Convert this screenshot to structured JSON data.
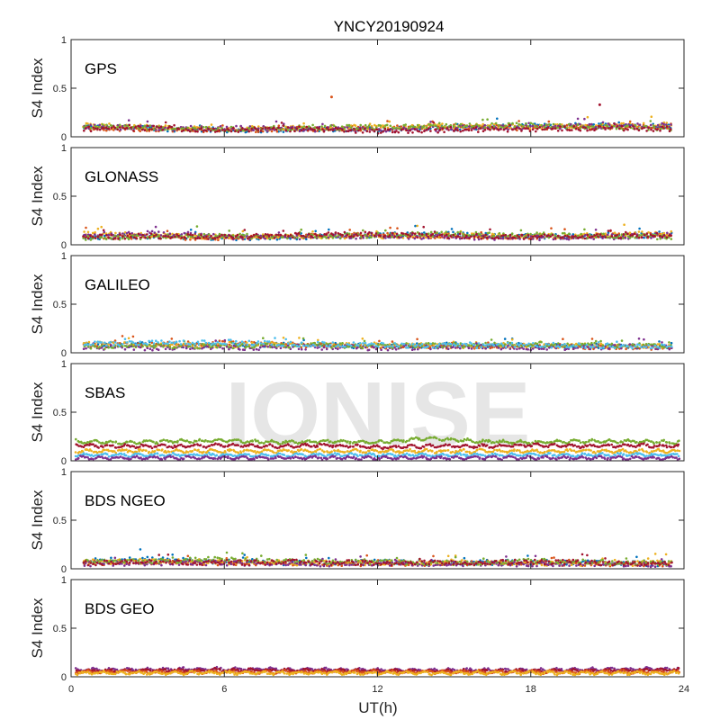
{
  "figure": {
    "title": "YNCY20190924",
    "watermark": "IONISE",
    "xlabel": "UT(h)",
    "xticks": [
      0,
      6,
      12,
      18,
      24
    ],
    "ylabel": "S4 Index",
    "yticks": [
      0,
      0.5,
      1
    ],
    "series_colors": [
      "#0072BD",
      "#D95319",
      "#EDB120",
      "#7E2F8E",
      "#77AC30",
      "#4DBEEE",
      "#A2142F"
    ]
  },
  "chart_data": [
    {
      "type": "scatter",
      "panel": "GPS",
      "xlabel": "",
      "ylabel": "S4 Index",
      "xlim": [
        0,
        24
      ],
      "ylim": [
        0,
        1
      ],
      "grid": false,
      "series": [
        {
          "color": "#0072BD",
          "x": [
            0.5,
            2,
            4,
            6,
            8,
            10,
            12,
            14,
            16,
            18,
            20,
            22,
            23.5
          ],
          "y": [
            0.1,
            0.09,
            0.08,
            0.07,
            0.07,
            0.08,
            0.08,
            0.09,
            0.1,
            0.11,
            0.12,
            0.12,
            0.11
          ]
        },
        {
          "color": "#D95319",
          "x": [
            0.5,
            3,
            6,
            9,
            12,
            15,
            18,
            21,
            23.5
          ],
          "y": [
            0.09,
            0.08,
            0.07,
            0.08,
            0.09,
            0.1,
            0.09,
            0.1,
            0.11
          ]
        },
        {
          "color": "#EDB120",
          "x": [
            0.5,
            3,
            6,
            9,
            12,
            15,
            18,
            21,
            23.5
          ],
          "y": [
            0.12,
            0.1,
            0.08,
            0.09,
            0.1,
            0.11,
            0.1,
            0.11,
            0.13
          ]
        },
        {
          "color": "#7E2F8E",
          "x": [
            0.5,
            3,
            6,
            9,
            12,
            15,
            18,
            21,
            23.5
          ],
          "y": [
            0.1,
            0.09,
            0.09,
            0.08,
            0.07,
            0.09,
            0.1,
            0.11,
            0.12
          ]
        },
        {
          "color": "#77AC30",
          "x": [
            0.5,
            3,
            6,
            9,
            12,
            15,
            18,
            21,
            23.5
          ],
          "y": [
            0.11,
            0.09,
            0.08,
            0.09,
            0.1,
            0.11,
            0.12,
            0.1,
            0.09
          ]
        },
        {
          "color": "#A2142F",
          "x": [
            0.5,
            3,
            6,
            9,
            12,
            15,
            18,
            21,
            23.5
          ],
          "y": [
            0.08,
            0.09,
            0.07,
            0.08,
            0.06,
            0.07,
            0.08,
            0.09,
            0.08
          ]
        }
      ],
      "outliers": [
        {
          "x": 10.2,
          "y": 0.41,
          "color": "#D95319"
        },
        {
          "x": 20.7,
          "y": 0.33,
          "color": "#A2142F"
        }
      ]
    },
    {
      "type": "scatter",
      "panel": "GLONASS",
      "xlabel": "",
      "ylabel": "S4 Index",
      "xlim": [
        0,
        24
      ],
      "ylim": [
        0,
        1
      ],
      "grid": false,
      "series": [
        {
          "color": "#0072BD",
          "x": [
            0.5,
            3,
            6,
            9,
            12,
            15,
            18,
            21,
            23.5
          ],
          "y": [
            0.08,
            0.09,
            0.07,
            0.08,
            0.1,
            0.11,
            0.08,
            0.09,
            0.1
          ]
        },
        {
          "color": "#D95319",
          "x": [
            0.5,
            3,
            6,
            9,
            12,
            15,
            18,
            21,
            23.5
          ],
          "y": [
            0.09,
            0.08,
            0.07,
            0.09,
            0.1,
            0.09,
            0.08,
            0.09,
            0.1
          ]
        },
        {
          "color": "#EDB120",
          "x": [
            0.5,
            3,
            6,
            9,
            12,
            15,
            18,
            21,
            23.5
          ],
          "y": [
            0.11,
            0.1,
            0.08,
            0.09,
            0.09,
            0.1,
            0.09,
            0.1,
            0.12
          ]
        },
        {
          "color": "#7E2F8E",
          "x": [
            0.5,
            3,
            6,
            9,
            12,
            15,
            18,
            21,
            23.5
          ],
          "y": [
            0.1,
            0.12,
            0.08,
            0.08,
            0.09,
            0.08,
            0.07,
            0.08,
            0.1
          ]
        },
        {
          "color": "#77AC30",
          "x": [
            0.5,
            3,
            6,
            9,
            12,
            15,
            18,
            21,
            23.5
          ],
          "y": [
            0.07,
            0.08,
            0.09,
            0.08,
            0.1,
            0.11,
            0.1,
            0.09,
            0.08
          ]
        },
        {
          "color": "#A2142F",
          "x": [
            0.5,
            3,
            6,
            9,
            12,
            15,
            18,
            21,
            23.5
          ],
          "y": [
            0.08,
            0.09,
            0.08,
            0.1,
            0.11,
            0.09,
            0.08,
            0.09,
            0.1
          ]
        }
      ]
    },
    {
      "type": "scatter",
      "panel": "GALILEO",
      "xlabel": "",
      "ylabel": "S4 Index",
      "xlim": [
        0,
        24
      ],
      "ylim": [
        0,
        1
      ],
      "grid": false,
      "series": [
        {
          "color": "#0072BD",
          "x": [
            0.5,
            3,
            6,
            9,
            12,
            15,
            18,
            21,
            23.5
          ],
          "y": [
            0.08,
            0.09,
            0.07,
            0.08,
            0.07,
            0.08,
            0.08,
            0.07,
            0.06
          ]
        },
        {
          "color": "#D95319",
          "x": [
            0.5,
            3,
            6,
            9,
            12,
            15,
            18,
            21,
            23.5
          ],
          "y": [
            0.07,
            0.08,
            0.1,
            0.08,
            0.07,
            0.06,
            0.07,
            0.06,
            0.05
          ]
        },
        {
          "color": "#EDB120",
          "x": [
            0.5,
            3,
            6,
            9,
            12,
            15,
            18,
            21,
            23.5
          ],
          "y": [
            0.1,
            0.09,
            0.08,
            0.09,
            0.08,
            0.07,
            0.08,
            0.07,
            0.07
          ]
        },
        {
          "color": "#7E2F8E",
          "x": [
            0.5,
            3,
            6,
            9,
            12,
            15,
            18,
            21,
            23.5
          ],
          "y": [
            0.06,
            0.05,
            0.05,
            0.06,
            0.05,
            0.06,
            0.05,
            0.06,
            0.06
          ]
        },
        {
          "color": "#77AC30",
          "x": [
            0.5,
            3,
            6,
            9,
            12,
            15,
            18,
            21,
            23.5
          ],
          "y": [
            0.06,
            0.07,
            0.07,
            0.08,
            0.07,
            0.08,
            0.09,
            0.08,
            0.07
          ]
        },
        {
          "color": "#4DBEEE",
          "x": [
            0.5,
            3,
            6,
            9,
            12,
            15,
            18,
            21,
            23.5
          ],
          "y": [
            0.09,
            0.1,
            0.11,
            0.09,
            0.08,
            0.07,
            0.08,
            0.07,
            0.06
          ]
        }
      ]
    },
    {
      "type": "scatter",
      "panel": "SBAS",
      "xlabel": "",
      "ylabel": "S4 Index",
      "xlim": [
        0,
        24
      ],
      "ylim": [
        0,
        1
      ],
      "grid": false,
      "series": [
        {
          "color": "#77AC30",
          "x": [
            0.2,
            2,
            4,
            6,
            8,
            10,
            12,
            14,
            16,
            18,
            20,
            22,
            23.8
          ],
          "y": [
            0.2,
            0.19,
            0.2,
            0.21,
            0.19,
            0.2,
            0.19,
            0.23,
            0.2,
            0.19,
            0.2,
            0.2,
            0.19
          ]
        },
        {
          "color": "#A2142F",
          "x": [
            0.2,
            2,
            4,
            6,
            8,
            10,
            12,
            14,
            16,
            18,
            20,
            22,
            23.8
          ],
          "y": [
            0.16,
            0.15,
            0.15,
            0.16,
            0.15,
            0.16,
            0.14,
            0.15,
            0.15,
            0.16,
            0.15,
            0.16,
            0.15
          ]
        },
        {
          "color": "#EDB120",
          "x": [
            0.2,
            6,
            12,
            18,
            23.8
          ],
          "y": [
            0.1,
            0.1,
            0.1,
            0.1,
            0.1
          ]
        },
        {
          "color": "#4DBEEE",
          "x": [
            0.2,
            6,
            12,
            18,
            23.8
          ],
          "y": [
            0.06,
            0.06,
            0.06,
            0.06,
            0.06
          ]
        },
        {
          "color": "#7E2F8E",
          "x": [
            0.2,
            6,
            12,
            18,
            23.8
          ],
          "y": [
            0.03,
            0.03,
            0.03,
            0.03,
            0.03
          ]
        }
      ]
    },
    {
      "type": "scatter",
      "panel": "BDS NGEO",
      "xlabel": "",
      "ylabel": "S4 Index",
      "xlim": [
        0,
        24
      ],
      "ylim": [
        0,
        1
      ],
      "grid": false,
      "series": [
        {
          "color": "#0072BD",
          "x": [
            0.5,
            3,
            6,
            9,
            12,
            15,
            18,
            21,
            23.5
          ],
          "y": [
            0.08,
            0.1,
            0.07,
            0.06,
            0.07,
            0.06,
            0.07,
            0.06,
            0.05
          ]
        },
        {
          "color": "#D95319",
          "x": [
            0.5,
            3,
            6,
            9,
            12,
            15,
            18,
            21,
            23.5
          ],
          "y": [
            0.06,
            0.07,
            0.06,
            0.06,
            0.05,
            0.06,
            0.06,
            0.05,
            0.05
          ]
        },
        {
          "color": "#EDB120",
          "x": [
            0.5,
            3,
            6,
            9,
            12,
            15,
            18,
            21,
            23.5
          ],
          "y": [
            0.07,
            0.08,
            0.07,
            0.06,
            0.06,
            0.07,
            0.06,
            0.05,
            0.06
          ]
        },
        {
          "color": "#7E2F8E",
          "x": [
            0.5,
            3,
            6,
            9,
            12,
            15,
            18,
            21,
            23.5
          ],
          "y": [
            0.05,
            0.06,
            0.06,
            0.05,
            0.05,
            0.05,
            0.05,
            0.05,
            0.04
          ]
        },
        {
          "color": "#77AC30",
          "x": [
            0.5,
            3,
            6,
            9,
            12,
            15,
            18,
            21,
            23.5
          ],
          "y": [
            0.09,
            0.08,
            0.1,
            0.08,
            0.07,
            0.06,
            0.08,
            0.07,
            0.06
          ]
        },
        {
          "color": "#A2142F",
          "x": [
            0.5,
            3,
            6,
            9,
            12,
            15,
            18,
            21,
            23.5
          ],
          "y": [
            0.06,
            0.07,
            0.06,
            0.07,
            0.06,
            0.06,
            0.07,
            0.06,
            0.05
          ]
        }
      ]
    },
    {
      "type": "scatter",
      "panel": "BDS GEO",
      "xlabel": "UT(h)",
      "ylabel": "S4 Index",
      "xlim": [
        0,
        24
      ],
      "ylim": [
        0,
        1
      ],
      "grid": false,
      "series": [
        {
          "color": "#7E2F8E",
          "x": [
            0.2,
            6,
            12,
            18,
            23.8
          ],
          "y": [
            0.07,
            0.08,
            0.07,
            0.07,
            0.08
          ]
        },
        {
          "color": "#A2142F",
          "x": [
            0.2,
            6,
            12,
            18,
            23.8
          ],
          "y": [
            0.06,
            0.07,
            0.06,
            0.06,
            0.07
          ]
        },
        {
          "color": "#D95319",
          "x": [
            0.2,
            6,
            12,
            18,
            23.8
          ],
          "y": [
            0.05,
            0.05,
            0.05,
            0.05,
            0.05
          ]
        },
        {
          "color": "#EDB120",
          "x": [
            0.2,
            6,
            12,
            18,
            23.8
          ],
          "y": [
            0.04,
            0.04,
            0.04,
            0.04,
            0.04
          ]
        }
      ]
    }
  ]
}
